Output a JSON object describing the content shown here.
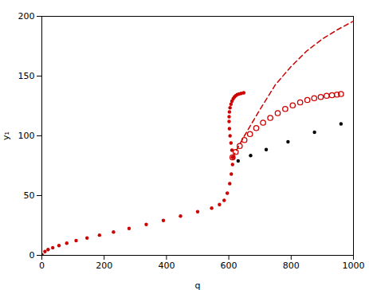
{
  "chart_data": {
    "type": "scatter",
    "title": "",
    "xlabel": "q",
    "ylabel": "y₁",
    "xlim": [
      0,
      1000
    ],
    "ylim": [
      0,
      200
    ],
    "xticks": [
      0,
      200,
      400,
      600,
      800,
      1000
    ],
    "yticks": [
      0,
      50,
      100,
      150,
      200
    ],
    "grid": false,
    "series": [
      {
        "type": "scatter",
        "marker": "circle",
        "color": "#cc0000",
        "x": [
          0.5,
          10,
          20,
          35,
          55,
          80,
          110,
          145,
          185,
          230,
          280,
          335,
          390,
          445,
          500,
          545,
          570,
          585,
          595,
          603,
          608,
          612,
          615
        ],
        "values": [
          0.5,
          3.2,
          4.8,
          6.4,
          8.2,
          10.2,
          12.3,
          14.5,
          16.9,
          19.5,
          22.5,
          25.8,
          29.2,
          32.8,
          36.5,
          39.5,
          42.5,
          46.0,
          52.0,
          60.0,
          68.0,
          76.0,
          82.0
        ]
      },
      {
        "type": "scatter",
        "marker": "circle",
        "color": "#cc0000",
        "x": [
          612,
          610,
          607,
          604,
          602,
          601,
          601,
          602,
          604,
          607,
          610,
          614,
          618,
          622,
          627,
          633,
          640,
          648
        ],
        "values": [
          82.0,
          88.0,
          94.0,
          100.0,
          106.0,
          112.0,
          116.0,
          120.0,
          123.5,
          126.5,
          129.0,
          131.0,
          132.5,
          133.5,
          134.5,
          135.0,
          135.5,
          136.0
        ]
      },
      {
        "type": "scatter",
        "marker": "ring",
        "color": "#cc0000",
        "x": [
          612,
          622,
          635,
          650,
          668,
          688,
          710,
          733,
          757,
          781,
          805,
          829,
          852,
          874,
          895,
          914,
          931,
          947,
          960
        ],
        "values": [
          82.0,
          86.5,
          91.5,
          96.5,
          101.5,
          106.5,
          111.0,
          115.0,
          119.0,
          122.5,
          125.5,
          128.0,
          130.0,
          131.5,
          132.5,
          133.5,
          134.0,
          134.5,
          135.0
        ]
      },
      {
        "type": "line",
        "line_style": "dashed",
        "color": "#cc0000",
        "x": [
          612,
          650,
          700,
          750,
          800,
          850,
          900,
          950,
          1000
        ],
        "values": [
          82.0,
          100.0,
          122.0,
          143.0,
          158.0,
          171.0,
          181.0,
          189.0,
          196.0
        ]
      },
      {
        "type": "scatter",
        "marker": "circle",
        "color": "#000000",
        "x": [
          630,
          670,
          720,
          790,
          875,
          960
        ],
        "values": [
          79.0,
          83.5,
          88.5,
          95.0,
          103.0,
          110.0
        ]
      }
    ]
  }
}
